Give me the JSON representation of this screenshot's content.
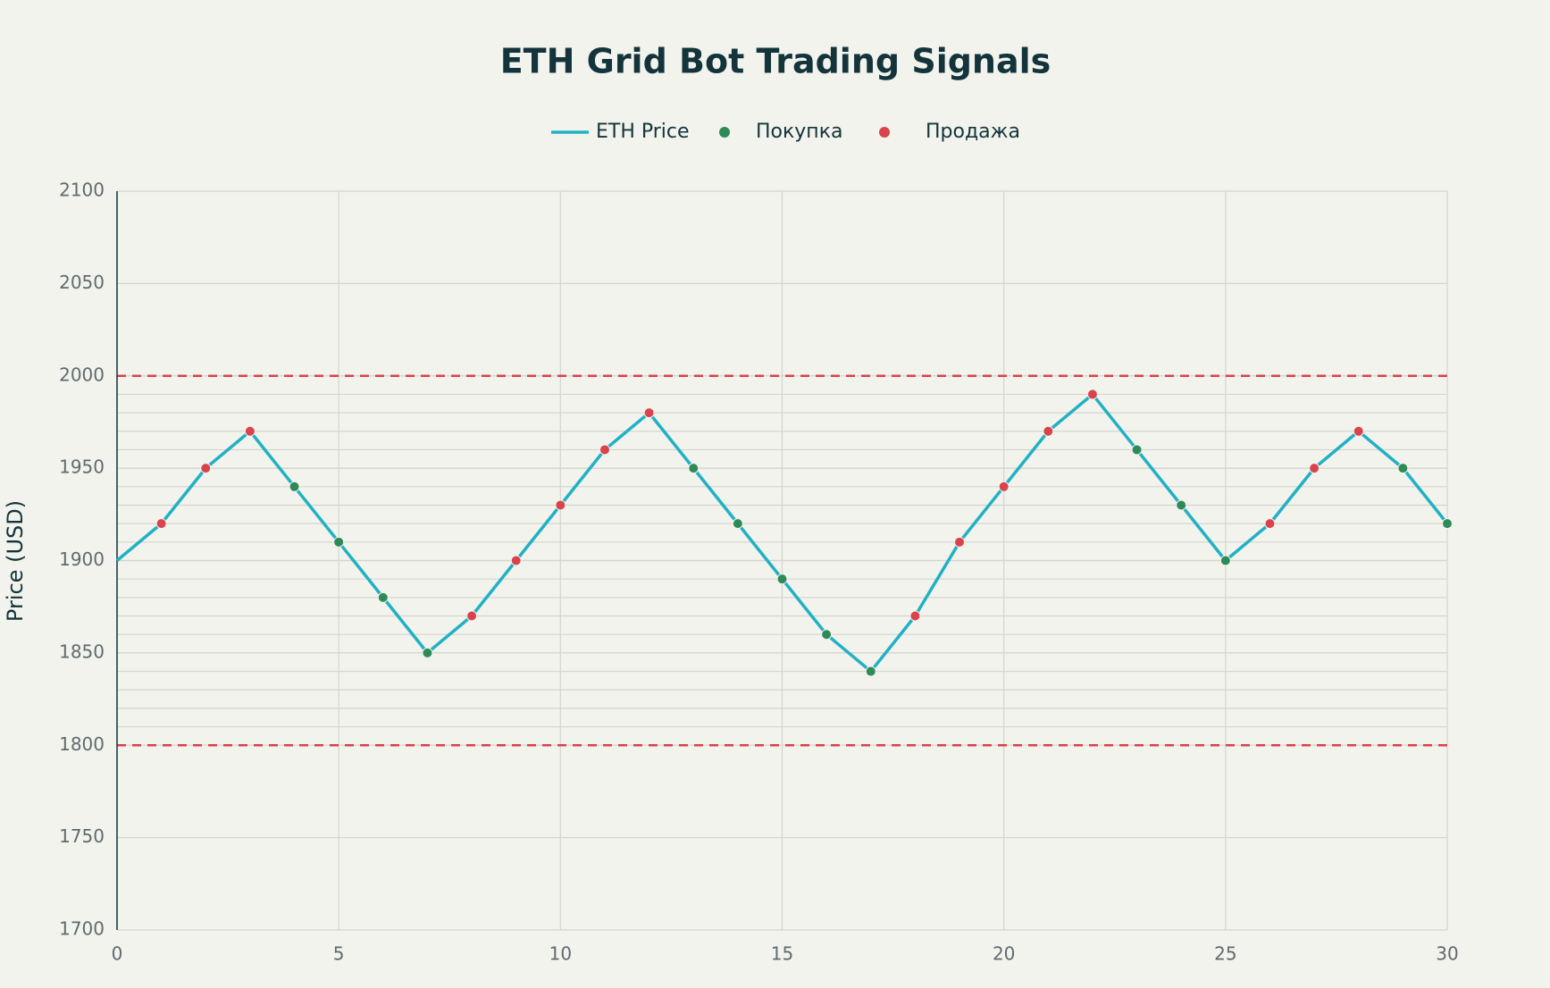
{
  "chart_data": {
    "type": "line",
    "title": "ETH Grid Bot Trading Signals",
    "y_label": "Price (USD)",
    "xlim": [
      0,
      30
    ],
    "xticks": [
      0,
      5,
      10,
      15,
      20,
      25,
      30
    ],
    "ylim": [
      1700,
      2100
    ],
    "yticks": [
      1700,
      1750,
      1800,
      1850,
      1900,
      1950,
      2000,
      2050,
      2100
    ],
    "grid": true,
    "grid_levels": [
      1810,
      1820,
      1830,
      1840,
      1850,
      1860,
      1870,
      1880,
      1890,
      1900,
      1910,
      1920,
      1930,
      1940,
      1950,
      1960,
      1970,
      1980,
      1990
    ],
    "range_lines": [
      1800,
      2000
    ],
    "range_color": "#d9434b",
    "series": [
      {
        "name": "ETH Price",
        "type": "line",
        "color": "#21b1c4",
        "x": [
          0,
          1,
          2,
          3,
          4,
          5,
          6,
          7,
          8,
          9,
          10,
          11,
          12,
          13,
          14,
          15,
          16,
          17,
          18,
          19,
          20,
          21,
          22,
          23,
          24,
          25,
          26,
          27,
          28,
          29,
          30
        ],
        "values": [
          1900,
          1920,
          1950,
          1970,
          1940,
          1910,
          1880,
          1850,
          1870,
          1900,
          1930,
          1960,
          1980,
          1950,
          1920,
          1890,
          1860,
          1840,
          1870,
          1910,
          1940,
          1970,
          1990,
          1960,
          1930,
          1900,
          1920,
          1950,
          1970,
          1950,
          1920
        ]
      },
      {
        "name": "Покупка",
        "type": "scatter",
        "color": "#2e8b57",
        "x": [
          4,
          5,
          6,
          7,
          13,
          14,
          15,
          16,
          17,
          23,
          24,
          25,
          29,
          30
        ],
        "values": [
          1940,
          1910,
          1880,
          1850,
          1950,
          1920,
          1890,
          1860,
          1840,
          1960,
          1930,
          1900,
          1950,
          1920
        ]
      },
      {
        "name": "Продажа",
        "type": "scatter",
        "color": "#d9434b",
        "x": [
          1,
          2,
          3,
          8,
          9,
          10,
          11,
          12,
          18,
          19,
          20,
          21,
          22,
          26,
          27,
          28
        ],
        "values": [
          1920,
          1950,
          1970,
          1870,
          1900,
          1930,
          1960,
          1980,
          1870,
          1910,
          1940,
          1970,
          1990,
          1920,
          1950,
          1970
        ]
      }
    ]
  }
}
